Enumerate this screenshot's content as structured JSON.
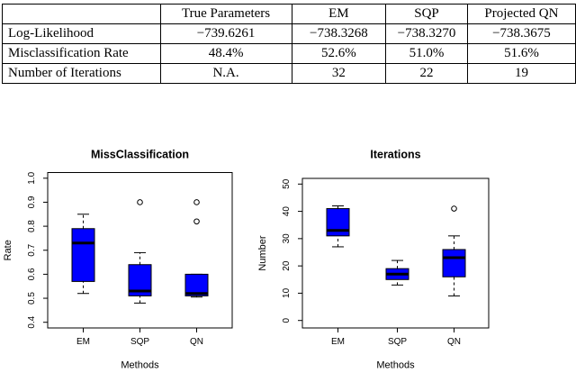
{
  "table": {
    "headers": [
      "",
      "True Parameters",
      "EM",
      "SQP",
      "Projected QN"
    ],
    "rows": [
      [
        "Log-Likelihood",
        "−739.6261",
        "−738.3268",
        "−738.3270",
        "−738.3675"
      ],
      [
        "Misclassification Rate",
        "48.4%",
        "52.6%",
        "51.0%",
        "51.6%"
      ],
      [
        "Number of Iterations",
        "N.A.",
        "32",
        "22",
        "19"
      ]
    ]
  },
  "chart_data": [
    {
      "type": "boxplot",
      "title": "MissClassification",
      "xlabel": "Methods",
      "ylabel": "Rate",
      "categories": [
        "EM",
        "SQP",
        "QN"
      ],
      "ylim": [
        0.4,
        1.0
      ],
      "yticks": [
        0.4,
        0.5,
        0.6,
        0.7,
        0.8,
        0.9,
        1.0
      ],
      "ytick_labels": [
        "0.4",
        "0.5",
        "0.6",
        "0.7",
        "0.8",
        "0.9",
        "1.0"
      ],
      "grid": false,
      "legend": "none",
      "box_fill_color": "#0000ff",
      "box_stroke_color": "#000000",
      "series": [
        {
          "name": "EM",
          "whisker_low": 0.52,
          "q1": 0.57,
          "median": 0.73,
          "q3": 0.79,
          "whisker_high": 0.85,
          "outliers": []
        },
        {
          "name": "SQP",
          "whisker_low": 0.48,
          "q1": 0.51,
          "median": 0.53,
          "q3": 0.64,
          "whisker_high": 0.69,
          "outliers": [
            0.9
          ]
        },
        {
          "name": "QN",
          "whisker_low": 0.505,
          "q1": 0.51,
          "median": 0.52,
          "q3": 0.6,
          "whisker_high": 0.6,
          "outliers": [
            0.82,
            0.9
          ]
        }
      ]
    },
    {
      "type": "boxplot",
      "title": "Iterations",
      "xlabel": "Methods",
      "ylabel": "Number",
      "categories": [
        "EM",
        "SQP",
        "QN"
      ],
      "ylim": [
        0,
        50
      ],
      "yticks": [
        0,
        10,
        20,
        30,
        40,
        50
      ],
      "ytick_labels": [
        "0",
        "10",
        "20",
        "30",
        "40",
        "50"
      ],
      "grid": false,
      "legend": "none",
      "box_fill_color": "#0000ff",
      "box_stroke_color": "#000000",
      "series": [
        {
          "name": "EM",
          "whisker_low": 27,
          "q1": 31,
          "median": 33,
          "q3": 41,
          "whisker_high": 42,
          "outliers": []
        },
        {
          "name": "SQP",
          "whisker_low": 13,
          "q1": 15,
          "median": 17,
          "q3": 19,
          "whisker_high": 22,
          "outliers": []
        },
        {
          "name": "QN",
          "whisker_low": 9,
          "q1": 16,
          "median": 23,
          "q3": 26,
          "whisker_high": 31,
          "outliers": [
            41
          ]
        }
      ]
    }
  ]
}
